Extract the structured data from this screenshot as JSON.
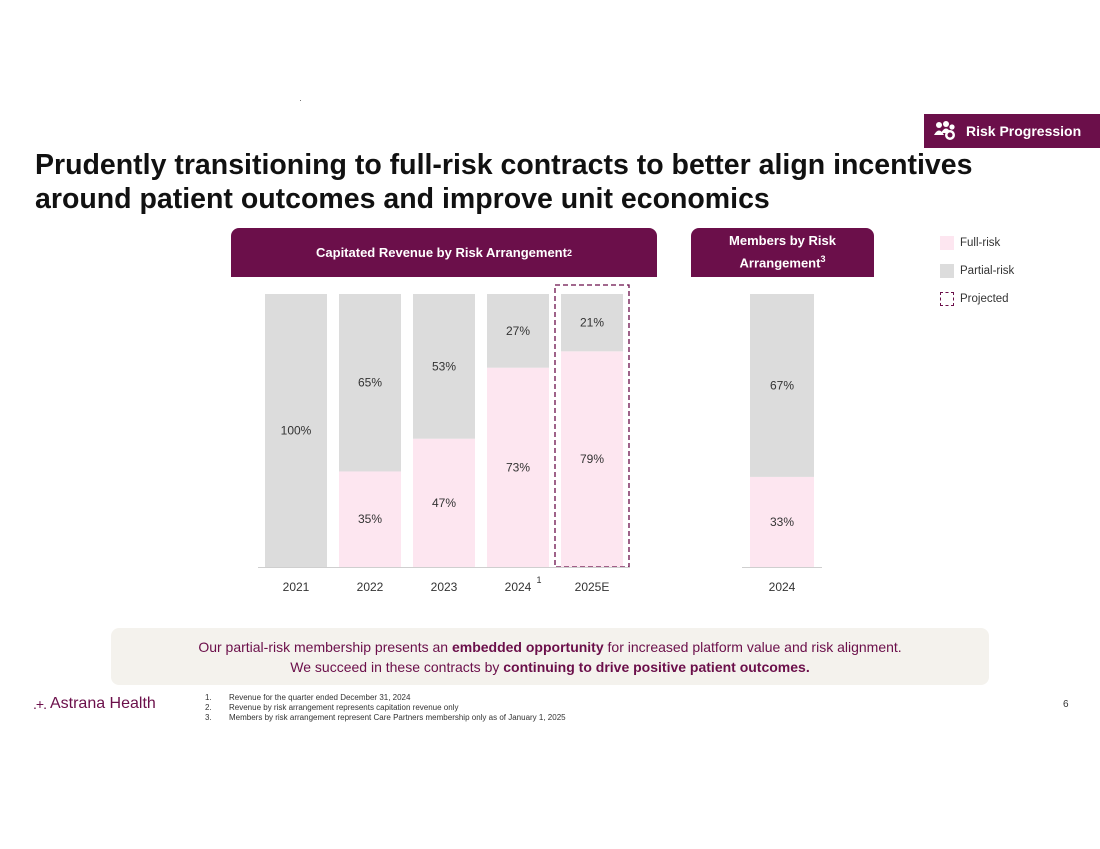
{
  "badge": {
    "label": "Risk Progression",
    "icon": "people-group-icon"
  },
  "title": "Prudently transitioning to full-risk contracts to better align incentives around patient outcomes and improve unit economics",
  "left_panel": {
    "title": "Capitated Revenue by Risk Arrangement",
    "superscript": "2"
  },
  "right_panel": {
    "title": "Members by Risk Arrangement",
    "superscript": "3"
  },
  "legend": [
    {
      "label": "Full-risk",
      "color": "#fde6f0",
      "style": "solid"
    },
    {
      "label": "Partial-risk",
      "color": "#dcdcdc",
      "style": "solid"
    },
    {
      "label": "Projected",
      "color": "#6b0f4a",
      "style": "dashed"
    }
  ],
  "chart_data": [
    {
      "type": "bar",
      "stacked": true,
      "title": "Capitated Revenue by Risk Arrangement",
      "categories": [
        "2021",
        "2022",
        "2023",
        "2024",
        "2025E"
      ],
      "category_footnotes": [
        "",
        "",
        "",
        "1",
        ""
      ],
      "projected": [
        "2025E"
      ],
      "unit": "%",
      "ylim": [
        0,
        100
      ],
      "series": [
        {
          "name": "Full-risk",
          "color": "#fde6f0",
          "values": [
            0,
            35,
            47,
            73,
            79
          ]
        },
        {
          "name": "Partial-risk",
          "color": "#dcdcdc",
          "values": [
            100,
            65,
            53,
            27,
            21
          ]
        }
      ]
    },
    {
      "type": "bar",
      "stacked": true,
      "title": "Members by Risk Arrangement",
      "categories": [
        "2024"
      ],
      "unit": "%",
      "ylim": [
        0,
        100
      ],
      "series": [
        {
          "name": "Full-risk",
          "color": "#fde6f0",
          "values": [
            33
          ]
        },
        {
          "name": "Partial-risk",
          "color": "#dcdcdc",
          "values": [
            67
          ]
        }
      ]
    }
  ],
  "callout": {
    "line1_pre": "Our partial-risk membership presents an ",
    "line1_bold": "embedded opportunity",
    "line1_post": " for increased platform value and risk alignment.",
    "line2_pre": "We succeed in these contracts by ",
    "line2_bold": "continuing to drive positive patient outcomes."
  },
  "logo": {
    "mark": ".+.",
    "text": "Astrana Health"
  },
  "footnotes": [
    {
      "num": "1.",
      "text": "Revenue for the quarter ended December 31, 2024"
    },
    {
      "num": "2.",
      "text": "Revenue by risk arrangement represents capitation revenue only"
    },
    {
      "num": "3.",
      "text": "Members by risk arrangement represent Care Partners membership only as of January 1, 2025"
    }
  ],
  "page_number": "6"
}
